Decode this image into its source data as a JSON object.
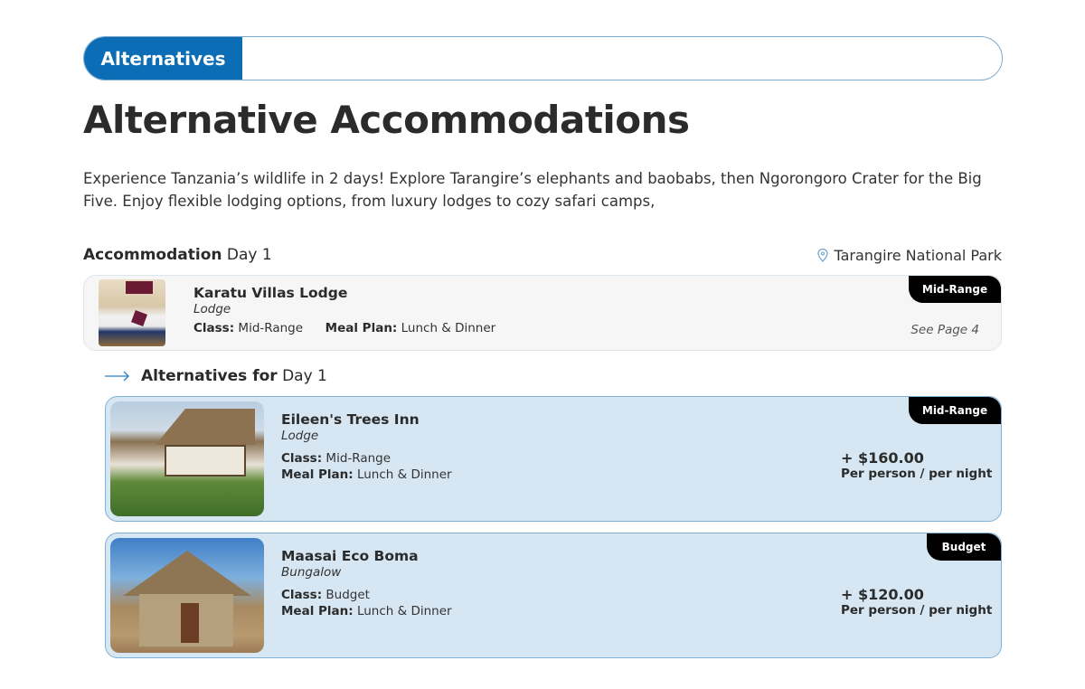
{
  "header": {
    "tab_label": "Alternatives"
  },
  "title": "Alternative Accommodations",
  "intro": "Experience Tanzania’s wildlife in 2 days! Explore Tarangire’s elephants and baobabs, then Ngorongoro Crater for the Big Five. Enjoy flexible lodging options, from luxury lodges to cozy safari camps,",
  "section": {
    "label_bold": "Accommodation",
    "label_day": "Day 1",
    "location": "Tarangire National Park",
    "location_icon": "map-pin-icon"
  },
  "main_stay": {
    "name": "Karatu Villas Lodge",
    "type": "Lodge",
    "class_label": "Class:",
    "class": "Mid-Range",
    "meal_label": "Meal Plan:",
    "meal": "Lunch & Dinner",
    "badge": "Mid-Range",
    "see_page": "See Page 4"
  },
  "alternatives_header": {
    "label_bold": "Alternatives for",
    "label_day": "Day 1",
    "icon": "arrow-right-icon"
  },
  "alternatives": [
    {
      "name": "Eileen's Trees Inn",
      "type": "Lodge",
      "class_label": "Class:",
      "class": "Mid-Range",
      "meal_label": "Meal Plan:",
      "meal": "Lunch & Dinner",
      "badge": "Mid-Range",
      "price": "+ $160.00",
      "price_unit": "Per person / per night"
    },
    {
      "name": "Maasai Eco Boma",
      "type": "Bungalow",
      "class_label": "Class:",
      "class": "Budget",
      "meal_label": "Meal Plan:",
      "meal": "Lunch & Dinner",
      "badge": "Budget",
      "price": "+ $120.00",
      "price_unit": "Per person / per night"
    }
  ],
  "colors": {
    "accent": "#0b6db5",
    "alt_card_bg": "#d6e7f3",
    "badge": "#000000"
  }
}
